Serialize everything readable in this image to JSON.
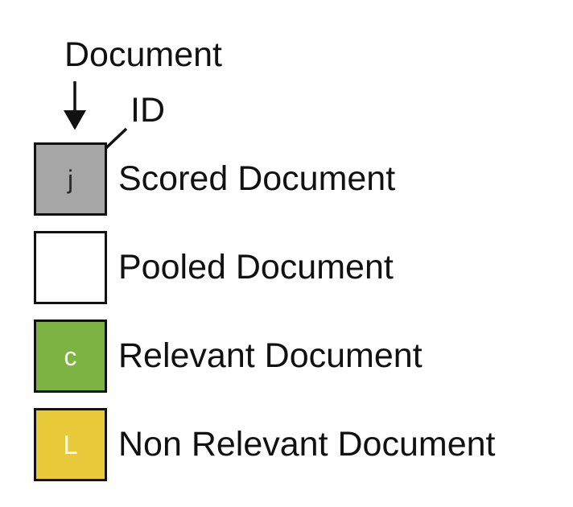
{
  "annotations": {
    "document": "Document",
    "id": "ID"
  },
  "legend": [
    {
      "letter": "j",
      "label": "Scored Document",
      "fill": "#a6a6a6",
      "letter_color": "#2a2a2a"
    },
    {
      "letter": "",
      "label": "Pooled Document",
      "fill": "#ffffff",
      "letter_color": "#2a2a2a"
    },
    {
      "letter": "c",
      "label": "Relevant Document",
      "fill": "#7cb342",
      "letter_color": "#ffffff"
    },
    {
      "letter": "L",
      "label": "Non Relevant Document",
      "fill": "#e8c93a",
      "letter_color": "#ffffff"
    }
  ]
}
